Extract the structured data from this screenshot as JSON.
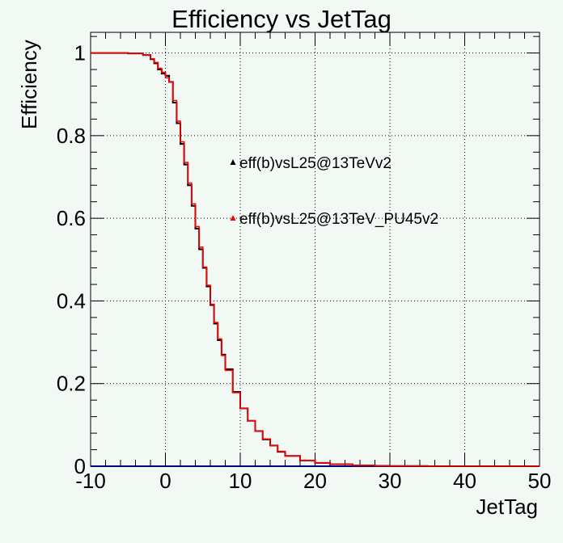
{
  "chart_data": {
    "type": "line",
    "title": "Efficiency vs JetTag",
    "xlabel": "JetTag",
    "ylabel": "Efficiency",
    "xlim": [
      -10,
      50
    ],
    "ylim": [
      0,
      1.05
    ],
    "xticks": [
      -10,
      0,
      10,
      20,
      30,
      40,
      50
    ],
    "yticks": [
      0,
      0.2,
      0.4,
      0.6,
      0.8,
      1
    ],
    "grid": true,
    "legend_position": "center",
    "series": [
      {
        "name": "eff(b)vsL25@13TeVv2",
        "color": "#000000",
        "x": [
          -10,
          -5,
          -3,
          -2,
          -1.5,
          -1,
          -0.5,
          0,
          0.5,
          1,
          1.5,
          2,
          2.5,
          3,
          3.5,
          4,
          4.5,
          5,
          5.5,
          6,
          6.5,
          7,
          7.5,
          8,
          9,
          10,
          11,
          12,
          13,
          14,
          15,
          16,
          18,
          20,
          22,
          25,
          28,
          30,
          35,
          40,
          50
        ],
        "y": [
          1.0,
          0.999,
          0.995,
          0.985,
          0.975,
          0.96,
          0.95,
          0.945,
          0.93,
          0.88,
          0.83,
          0.78,
          0.73,
          0.68,
          0.63,
          0.575,
          0.525,
          0.48,
          0.435,
          0.39,
          0.345,
          0.305,
          0.27,
          0.235,
          0.18,
          0.14,
          0.11,
          0.085,
          0.065,
          0.05,
          0.035,
          0.025,
          0.014,
          0.008,
          0.005,
          0.002,
          0.001,
          0.0005,
          0.0,
          0.0,
          0.0
        ]
      },
      {
        "name": "eff(b)vsL25@13TeV_PU45v2",
        "color": "#ff0000",
        "x": [
          -10,
          -5,
          -3,
          -2,
          -1.5,
          -1,
          -0.5,
          0,
          0.5,
          1,
          1.5,
          2,
          2.5,
          3,
          3.5,
          4,
          4.5,
          5,
          5.5,
          6,
          6.5,
          7,
          7.5,
          8,
          9,
          10,
          11,
          12,
          13,
          14,
          15,
          16,
          18,
          20,
          22,
          25,
          28,
          30,
          35,
          40,
          50
        ],
        "y": [
          1.0,
          0.999,
          0.995,
          0.986,
          0.977,
          0.963,
          0.953,
          0.94,
          0.93,
          0.885,
          0.835,
          0.785,
          0.735,
          0.685,
          0.635,
          0.58,
          0.53,
          0.482,
          0.438,
          0.392,
          0.348,
          0.308,
          0.268,
          0.232,
          0.178,
          0.14,
          0.11,
          0.085,
          0.066,
          0.05,
          0.036,
          0.025,
          0.014,
          0.008,
          0.005,
          0.002,
          0.001,
          0.0005,
          0.0,
          0.0,
          0.0
        ]
      }
    ],
    "baseline_color": "#000080"
  }
}
